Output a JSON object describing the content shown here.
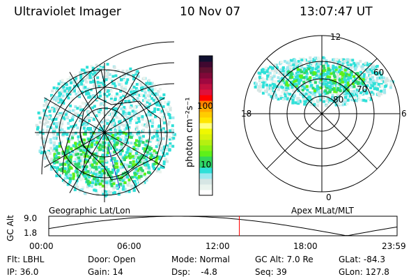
{
  "header": {
    "instrument": "Ultraviolet Imager",
    "date": "10 Nov 07",
    "time": "13:07:47 UT"
  },
  "colorbar": {
    "label": "photon cm⁻²s⁻¹",
    "ticks": [
      "100",
      "10"
    ],
    "colors": [
      "#ffffff",
      "#eaf4ee",
      "#d6e6e4",
      "#9de9ef",
      "#2fe0d8",
      "#2ed86a",
      "#33d85a",
      "#5ef01a",
      "#8cf014",
      "#b5f010",
      "#d9f20a",
      "#f0f800",
      "#ffff80",
      "#ffe600",
      "#ffcc00",
      "#ffaa00",
      "#ff8000",
      "#ff0000",
      "#e0103c",
      "#c01040",
      "#a00840",
      "#800838",
      "#601030",
      "#400830",
      "#101030"
    ]
  },
  "left_map": {
    "label": "Geographic Lat/Lon"
  },
  "right_map": {
    "label": "Apex MLat/MLT",
    "mlt_labels": {
      "top": "12",
      "bottom": "0",
      "left": "18",
      "right": "6"
    },
    "lat_labels": [
      "80",
      "70",
      "60"
    ]
  },
  "orbit_plot": {
    "ylabel": "GC Alt",
    "yticks": [
      "9.0",
      "1.8"
    ],
    "xticks": [
      "00:00",
      "06:00",
      "12:00",
      "18:00",
      "23:59"
    ],
    "current_time_fraction": 0.547
  },
  "status": {
    "flt": "Flt: LBHL",
    "ip": "IP: 36.0",
    "door": "Door: Open",
    "gain": "Gain: 14",
    "mode": "Mode: Normal",
    "dsp": "Dsp:    -4.8",
    "gcalt": "GC Alt: 7.0 Re",
    "seq": "Seq: 39",
    "glat": "GLat: -84.3",
    "glon": "GLon: 127.8"
  }
}
